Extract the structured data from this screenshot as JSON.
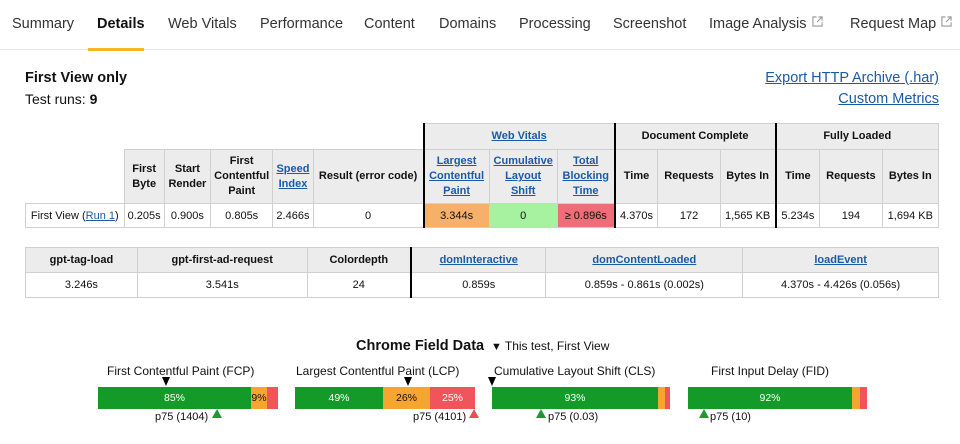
{
  "tabs": [
    {
      "label": "Summary"
    },
    {
      "label": "Details"
    },
    {
      "label": "Web Vitals"
    },
    {
      "label": "Performance"
    },
    {
      "label": "Content"
    },
    {
      "label": "Domains"
    },
    {
      "label": "Processing"
    },
    {
      "label": "Screenshot"
    },
    {
      "label": "Image Analysis"
    },
    {
      "label": "Request Map"
    }
  ],
  "header": {
    "title": "First View only",
    "runs_label": "Test runs:",
    "runs_value": "9",
    "export_link": "Export HTTP Archive (.har)",
    "custom_metrics_link": "Custom Metrics"
  },
  "summary_table": {
    "group_headers": {
      "web_vitals": "Web Vitals",
      "document_complete": "Document Complete",
      "fully_loaded": "Fully Loaded"
    },
    "columns": {
      "first_byte": "First Byte",
      "start_render": "Start Render",
      "fcp": "First Contentful Paint",
      "speed_index": "Speed Index",
      "result": "Result (error code)",
      "lcp": "Largest Contentful Paint",
      "cls": "Cumulative Layout Shift",
      "tbt": "Total Blocking Time",
      "dc_time": "Time",
      "dc_requests": "Requests",
      "dc_bytes": "Bytes In",
      "fl_time": "Time",
      "fl_requests": "Requests",
      "fl_bytes": "Bytes In"
    },
    "row": {
      "label": "First View (",
      "run_link": "Run 1",
      "label_end": ")",
      "first_byte": "0.205s",
      "start_render": "0.900s",
      "fcp": "0.805s",
      "speed_index": "2.466s",
      "result": "0",
      "lcp": "3.344s",
      "cls": "0",
      "tbt": "≥ 0.896s",
      "dc_time": "4.370s",
      "dc_requests": "172",
      "dc_bytes": "1,565 KB",
      "fl_time": "5.234s",
      "fl_requests": "194",
      "fl_bytes": "1,694 KB"
    }
  },
  "metrics_table": {
    "headers": {
      "gpt_tag_load": "gpt-tag-load",
      "gpt_first_ad": "gpt-first-ad-request",
      "colordepth": "Colordepth",
      "dom_interactive": "domInteractive",
      "dom_content_loaded": "domContentLoaded",
      "load_event": "loadEvent"
    },
    "values": {
      "gpt_tag_load": "3.246s",
      "gpt_first_ad": "3.541s",
      "colordepth": "24",
      "dom_interactive": "0.859s",
      "dom_content_loaded": "0.859s - 0.861s (0.002s)",
      "load_event": "4.370s - 4.426s (0.056s)"
    }
  },
  "field_data": {
    "title": "Chrome Field Data",
    "legend_marker": "▼",
    "legend": "This test, First View",
    "metrics": [
      {
        "label": "First Contentful Paint (FCP)",
        "good": 85,
        "ni": 9,
        "poor": 6,
        "good_label": "85%",
        "ni_label": "9%",
        "poor_label": "",
        "p75": "p75 (1404)"
      },
      {
        "label": "Largest Contentful Paint (LCP)",
        "good": 49,
        "ni": 26,
        "poor": 25,
        "good_label": "49%",
        "ni_label": "26%",
        "poor_label": "25%",
        "p75": "p75 (4101)"
      },
      {
        "label": "Cumulative Layout Shift (CLS)",
        "good": 93,
        "ni": 4,
        "poor": 3,
        "good_label": "93%",
        "ni_label": "",
        "poor_label": "",
        "p75": "p75 (0.03)"
      },
      {
        "label": "First Input Delay (FID)",
        "good": 92,
        "ni": 4,
        "poor": 4,
        "good_label": "92%",
        "ni_label": "",
        "poor_label": "",
        "p75": "p75 (10)"
      }
    ]
  },
  "colors": {
    "accent_tab": "#f2b824",
    "link": "#1a5aa6",
    "good": "#149a28",
    "needs_improvement": "#f7a531",
    "poor": "#f2545b"
  }
}
